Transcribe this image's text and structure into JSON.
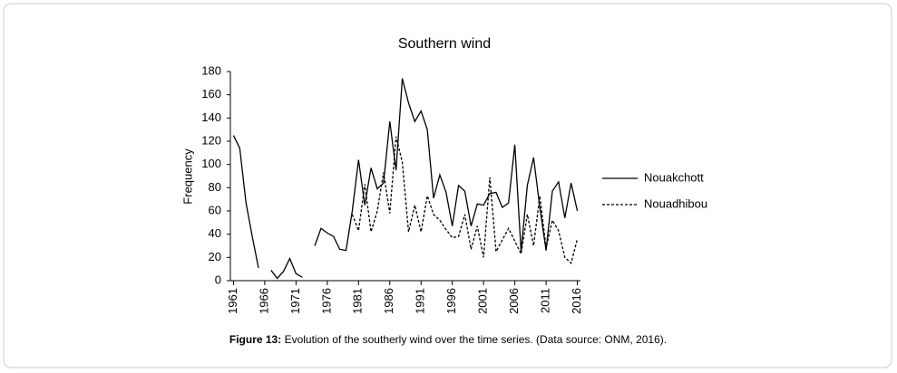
{
  "chart_data": {
    "type": "line",
    "title": "Southern wind",
    "y_label": "Frequency",
    "x": [
      1961,
      1962,
      1963,
      1964,
      1965,
      1966,
      1967,
      1968,
      1969,
      1970,
      1971,
      1972,
      1973,
      1974,
      1975,
      1976,
      1977,
      1978,
      1979,
      1980,
      1981,
      1982,
      1983,
      1984,
      1985,
      1986,
      1987,
      1988,
      1989,
      1990,
      1991,
      1992,
      1993,
      1994,
      1995,
      1996,
      1997,
      1998,
      1999,
      2000,
      2001,
      2002,
      2003,
      2004,
      2005,
      2006,
      2007,
      2008,
      2009,
      2010,
      2011,
      2012,
      2013,
      2014,
      2015,
      2016
    ],
    "series": [
      {
        "name": "Nouakchott",
        "color": "#000000",
        "dash": "solid",
        "values": [
          125,
          114,
          67,
          38,
          11,
          null,
          9,
          2,
          8,
          19,
          6,
          3,
          null,
          30,
          45,
          41,
          38,
          27,
          26,
          60,
          104,
          65,
          97,
          79,
          84,
          137,
          95,
          174,
          153,
          137,
          146,
          130,
          71,
          91,
          76,
          47,
          82,
          77,
          47,
          66,
          65,
          75,
          76,
          63,
          67,
          117,
          25,
          82,
          106,
          63,
          26,
          77,
          85,
          54,
          84,
          60
        ]
      },
      {
        "name": "Nouadhibou",
        "color": "#000000",
        "dash": "dashed",
        "values": [
          null,
          null,
          null,
          null,
          null,
          null,
          null,
          null,
          null,
          null,
          null,
          null,
          null,
          null,
          null,
          null,
          null,
          null,
          null,
          57,
          43,
          83,
          42,
          60,
          93,
          58,
          124,
          102,
          42,
          65,
          42,
          73,
          57,
          52,
          44,
          37,
          38,
          57,
          27,
          47,
          20,
          89,
          25,
          35,
          45,
          34,
          23,
          57,
          30,
          73,
          28,
          52,
          43,
          20,
          15,
          36
        ]
      }
    ],
    "xlim": [
      1960.5,
      2016.5
    ],
    "xticks": [
      1961,
      1966,
      1971,
      1976,
      1981,
      1986,
      1991,
      1996,
      2001,
      2006,
      2011,
      2016
    ],
    "ylim": [
      0,
      180
    ],
    "yticks": [
      0,
      20,
      40,
      60,
      80,
      100,
      120,
      140,
      160,
      180
    ],
    "legend": "right",
    "grid": false
  },
  "caption": {
    "label": "Figure 13:",
    "text": "Evolution of the southerly wind over the time series. (Data source: ONM, 2016)."
  }
}
